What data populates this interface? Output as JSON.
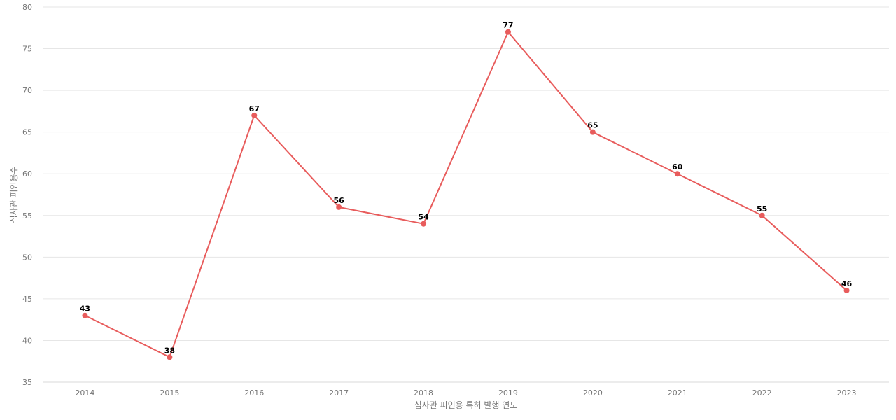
{
  "chart_data": {
    "type": "line",
    "title": "",
    "xlabel": "심사관 피인용 특허 발행 연도",
    "ylabel": "심사관 피인용수",
    "categories": [
      "2014",
      "2015",
      "2016",
      "2017",
      "2018",
      "2019",
      "2020",
      "2021",
      "2022",
      "2023"
    ],
    "series": [
      {
        "values": [
          43,
          38,
          67,
          56,
          54,
          77,
          65,
          60,
          55,
          46
        ],
        "color": "#e85c5c"
      }
    ],
    "ylim": [
      35,
      80
    ],
    "yticks": [
      35,
      40,
      45,
      50,
      55,
      60,
      65,
      70,
      75,
      80
    ],
    "grid": true,
    "data_labels": true
  }
}
